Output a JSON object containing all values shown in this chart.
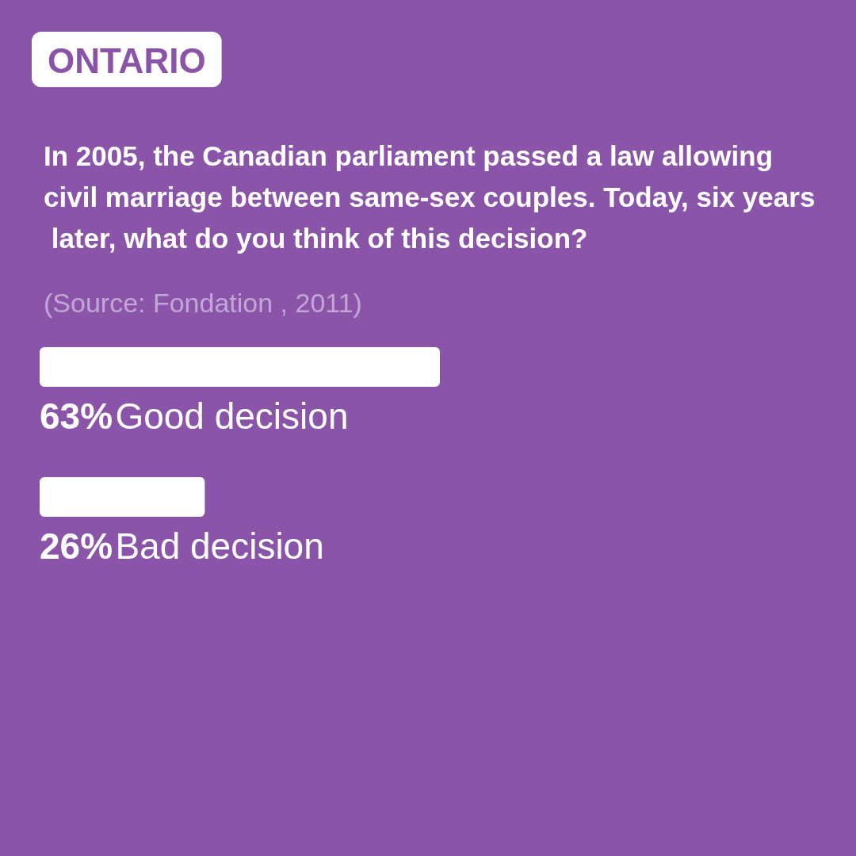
{
  "chart_data": {
    "type": "bar",
    "orientation": "horizontal",
    "title": "ONTARIO",
    "subtitle": "In 2005, the Canadian parliament passed a law allowing civil marriage between same-sex couples. Today, six years later, what do you think of this decision?",
    "annotations": [
      "(Source: Fondation , 2011)"
    ],
    "categories": [
      "Good decision",
      "Bad decision"
    ],
    "values": [
      63,
      26
    ],
    "value_labels": [
      "63%",
      "26%"
    ],
    "color": "#ffffff"
  }
}
